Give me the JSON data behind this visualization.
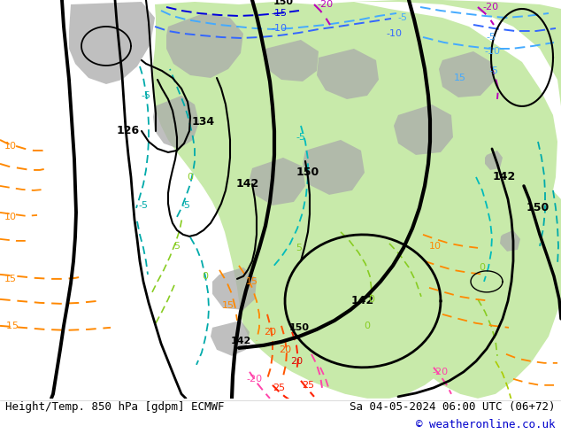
{
  "title_left": "Height/Temp. 850 hPa [gdpm] ECMWF",
  "title_right": "Sa 04-05-2024 06:00 UTC (06+72)",
  "copyright": "© weatheronline.co.uk",
  "bg_color": "#dcdcdc",
  "footer_bg": "#ffffff",
  "copyright_color": "#0000cc",
  "map_bg": "#dcdcdc",
  "green_color": "#c8eaaa",
  "gray_terrain": "#aaaaaa",
  "colors": {
    "black": "#000000",
    "cyan_dark": "#00aaaa",
    "cyan": "#00cccc",
    "cyan_light": "#44cccc",
    "blue_light": "#44aaff",
    "blue": "#3366ff",
    "blue_dark": "#0000dd",
    "purple": "#bb00bb",
    "green_lime": "#88cc22",
    "green_yellow": "#aacc00",
    "orange": "#ff8800",
    "orange_red": "#ff5500",
    "red": "#ff2200",
    "pink": "#ff44aa",
    "pink_dark": "#dd0077"
  }
}
